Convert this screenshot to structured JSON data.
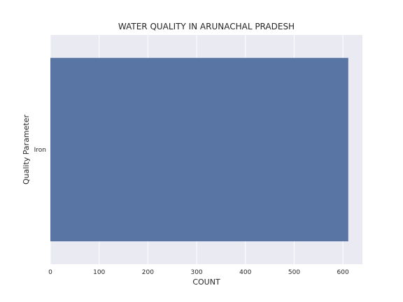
{
  "chart_data": {
    "type": "bar",
    "orientation": "horizontal",
    "title": "WATER QUALITY IN ARUNACHAL PRADESH",
    "xlabel": "COUNT",
    "ylabel": "Quality Parameter",
    "categories": [
      "Iron"
    ],
    "values": [
      611
    ],
    "xlim": [
      0,
      640
    ],
    "xticks": [
      0,
      100,
      200,
      300,
      400,
      500,
      600
    ],
    "grid": true,
    "colors": {
      "background": "#eaeaf2",
      "grid": "#ffffff",
      "bar": "#5975a4"
    }
  }
}
